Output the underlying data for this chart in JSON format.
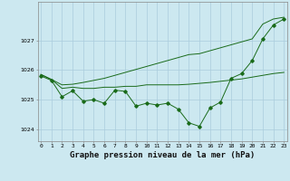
{
  "x": [
    0,
    1,
    2,
    3,
    4,
    5,
    6,
    7,
    8,
    9,
    10,
    11,
    12,
    13,
    14,
    15,
    16,
    17,
    18,
    19,
    20,
    21,
    22,
    23
  ],
  "y_main": [
    1025.8,
    1025.65,
    1025.1,
    1025.3,
    1024.95,
    1025.0,
    1024.88,
    1025.32,
    1025.28,
    1024.78,
    1024.88,
    1024.82,
    1024.88,
    1024.68,
    1024.22,
    1024.1,
    1024.72,
    1024.92,
    1025.72,
    1025.88,
    1026.32,
    1027.05,
    1027.52,
    1027.72
  ],
  "y_upper": [
    1025.85,
    1025.68,
    1025.5,
    1025.52,
    1025.58,
    1025.65,
    1025.72,
    1025.82,
    1025.92,
    1026.02,
    1026.12,
    1026.22,
    1026.32,
    1026.42,
    1026.52,
    1026.55,
    1026.65,
    1026.75,
    1026.85,
    1026.95,
    1027.05,
    1027.55,
    1027.72,
    1027.78
  ],
  "y_lower": [
    1025.85,
    1025.68,
    1025.38,
    1025.42,
    1025.38,
    1025.38,
    1025.42,
    1025.42,
    1025.45,
    1025.45,
    1025.5,
    1025.5,
    1025.5,
    1025.5,
    1025.52,
    1025.55,
    1025.58,
    1025.62,
    1025.66,
    1025.7,
    1025.76,
    1025.82,
    1025.88,
    1025.92
  ],
  "bg_color": "#cce8f0",
  "line_color": "#1a6b1a",
  "grid_color": "#aaccdd",
  "xlabel": "Graphe pression niveau de la mer (hPa)",
  "ylim": [
    1023.6,
    1028.3
  ],
  "yticks": [
    1024,
    1025,
    1026,
    1027
  ],
  "xticks": [
    0,
    1,
    2,
    3,
    4,
    5,
    6,
    7,
    8,
    9,
    10,
    11,
    12,
    13,
    14,
    15,
    16,
    17,
    18,
    19,
    20,
    21,
    22,
    23
  ],
  "xticklabels": [
    "0",
    "1",
    "2",
    "3",
    "4",
    "5",
    "6",
    "7",
    "8",
    "9",
    "10",
    "11",
    "12",
    "13",
    "14",
    "15",
    "16",
    "17",
    "18",
    "19",
    "20",
    "21",
    "22",
    "23"
  ],
  "tick_fontsize": 4.5,
  "xlabel_fontsize": 6.5,
  "figw": 3.2,
  "figh": 2.0,
  "dpi": 100
}
